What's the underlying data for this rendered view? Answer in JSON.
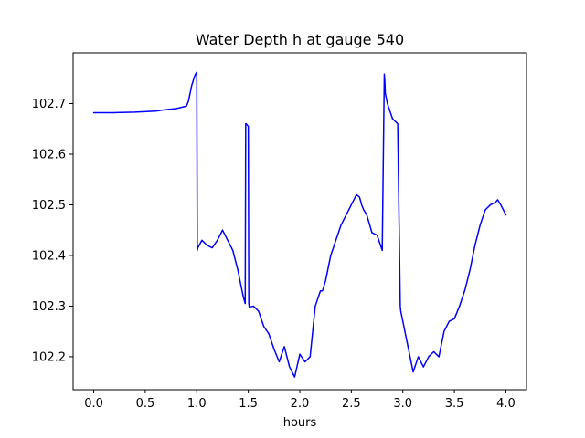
{
  "chart_data": {
    "type": "line",
    "title": "Water Depth h at gauge 540",
    "xlabel": "hours",
    "ylabel": "",
    "xlim": [
      -0.2,
      4.2
    ],
    "ylim": [
      102.135,
      102.8
    ],
    "grid": false,
    "xticks": [
      0.0,
      0.5,
      1.0,
      1.5,
      2.0,
      2.5,
      3.0,
      3.5,
      4.0
    ],
    "xtick_labels": [
      "0.0",
      "0.5",
      "1.0",
      "1.5",
      "2.0",
      "2.5",
      "3.0",
      "3.5",
      "4.0"
    ],
    "yticks": [
      102.2,
      102.3,
      102.4,
      102.5,
      102.6,
      102.7
    ],
    "ytick_labels": [
      "102.2",
      "102.3",
      "102.4",
      "102.5",
      "102.6",
      "102.7"
    ],
    "series": [
      {
        "color": "#0000ff",
        "x": [
          0.0,
          0.2,
          0.4,
          0.6,
          0.7,
          0.8,
          0.9,
          0.92,
          0.95,
          0.98,
          1.0,
          1.005,
          1.01,
          1.05,
          1.1,
          1.15,
          1.2,
          1.25,
          1.3,
          1.35,
          1.4,
          1.45,
          1.47,
          1.475,
          1.48,
          1.5,
          1.505,
          1.51,
          1.55,
          1.6,
          1.65,
          1.7,
          1.75,
          1.8,
          1.85,
          1.9,
          1.95,
          2.0,
          2.05,
          2.1,
          2.15,
          2.2,
          2.22,
          2.25,
          2.3,
          2.35,
          2.4,
          2.45,
          2.5,
          2.55,
          2.58,
          2.6,
          2.62,
          2.65,
          2.7,
          2.75,
          2.8,
          2.82,
          2.825,
          2.83,
          2.85,
          2.9,
          2.95,
          2.975,
          2.98,
          3.0,
          3.05,
          3.1,
          3.15,
          3.2,
          3.25,
          3.3,
          3.35,
          3.4,
          3.45,
          3.5,
          3.55,
          3.6,
          3.65,
          3.7,
          3.75,
          3.8,
          3.85,
          3.9,
          3.92,
          3.95,
          4.0
        ],
        "y": [
          102.682,
          102.682,
          102.683,
          102.685,
          102.688,
          102.69,
          102.695,
          102.705,
          102.735,
          102.755,
          102.762,
          102.41,
          102.415,
          102.43,
          102.42,
          102.415,
          102.43,
          102.45,
          102.43,
          102.41,
          102.37,
          102.32,
          102.305,
          102.66,
          102.66,
          102.655,
          102.305,
          102.298,
          102.3,
          102.29,
          102.26,
          102.245,
          102.215,
          102.19,
          102.22,
          102.18,
          102.16,
          102.205,
          102.19,
          102.2,
          102.3,
          102.33,
          102.33,
          102.35,
          102.4,
          102.43,
          102.46,
          102.48,
          102.5,
          102.52,
          102.515,
          102.5,
          102.49,
          102.48,
          102.445,
          102.44,
          102.41,
          102.758,
          102.745,
          102.72,
          102.7,
          102.67,
          102.66,
          102.3,
          102.29,
          102.27,
          102.22,
          102.17,
          102.2,
          102.18,
          102.2,
          102.21,
          102.2,
          102.25,
          102.27,
          102.275,
          102.3,
          102.33,
          102.37,
          102.42,
          102.46,
          102.49,
          102.5,
          102.505,
          102.51,
          102.5,
          102.48
        ]
      }
    ]
  }
}
